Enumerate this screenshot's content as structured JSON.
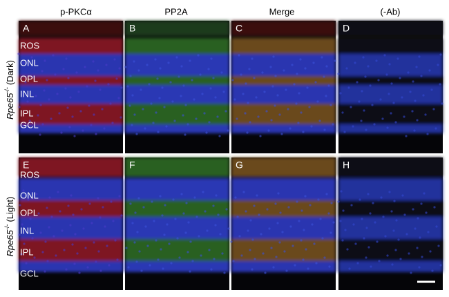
{
  "figure": {
    "column_headers": [
      "p-PKCα",
      "PP2A",
      "Merge",
      "(-Ab)"
    ],
    "panel_letters": [
      "A",
      "B",
      "C",
      "D",
      "E",
      "F",
      "G",
      "H"
    ],
    "row_labels": [
      {
        "gene": "Rpe65",
        "superscript": "-/-",
        "condition": "(Dark)"
      },
      {
        "gene": "Rpe65",
        "superscript": "-/-",
        "condition": "(Light)"
      }
    ],
    "layer_labels": [
      [
        "ROS",
        "ONL",
        "OPL",
        "INL",
        "IPL",
        "GCL"
      ],
      [
        "ROS",
        "ONL",
        "OPL",
        "INL",
        "IPL",
        "GCL"
      ]
    ]
  }
}
